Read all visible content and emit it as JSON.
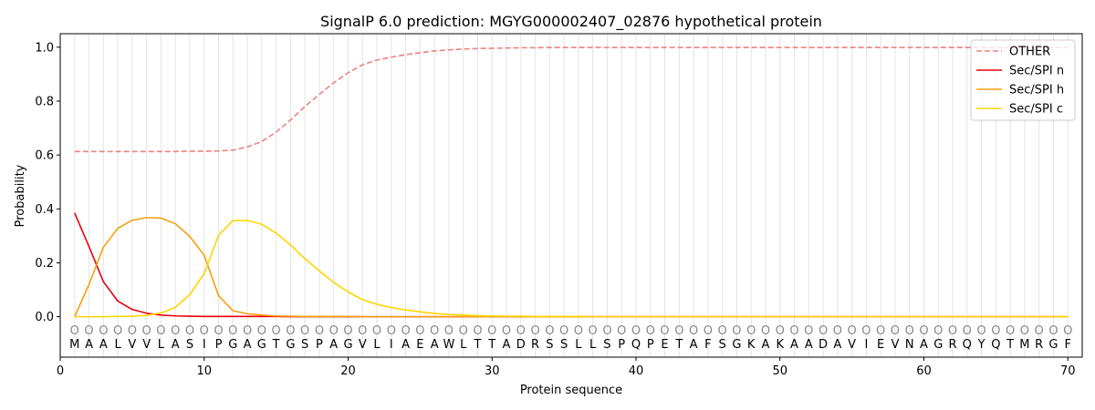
{
  "chart_data": {
    "type": "line",
    "title": "SignalP 6.0 prediction: MGYG000002407_02876 hypothetical protein",
    "xlabel": "Protein sequence",
    "ylabel": "Probability",
    "xlim": [
      0,
      71
    ],
    "ylim": [
      -0.15,
      1.05
    ],
    "x_ticks": [
      0,
      10,
      20,
      30,
      40,
      50,
      60,
      70
    ],
    "y_ticks": [
      0.0,
      0.2,
      0.4,
      0.6,
      0.8,
      1.0
    ],
    "x_tick_labels": [
      "0",
      "10",
      "20",
      "30",
      "40",
      "50",
      "60",
      "70"
    ],
    "y_tick_labels": [
      "0.0",
      "0.2",
      "0.4",
      "0.6",
      "0.8",
      "1.0"
    ],
    "grid": "vertical lines at each residue",
    "legend_position": "top-right",
    "sequence": [
      "M",
      "A",
      "A",
      "L",
      "V",
      "V",
      "L",
      "A",
      "S",
      "I",
      "P",
      "G",
      "A",
      "G",
      "T",
      "G",
      "S",
      "P",
      "A",
      "G",
      "V",
      "L",
      "I",
      "A",
      "E",
      "A",
      "W",
      "L",
      "T",
      "T",
      "A",
      "D",
      "R",
      "S",
      "S",
      "L",
      "L",
      "S",
      "P",
      "Q",
      "P",
      "E",
      "T",
      "A",
      "F",
      "S",
      "G",
      "K",
      "A",
      "K",
      "A",
      "A",
      "D",
      "A",
      "V",
      "I",
      "E",
      "V",
      "N",
      "A",
      "G",
      "R",
      "Q",
      "Y",
      "Q",
      "T",
      "M",
      "R",
      "G",
      "F"
    ],
    "region_labels": [
      "O",
      "O",
      "O",
      "O",
      "O",
      "O",
      "O",
      "O",
      "O",
      "O",
      "O",
      "O",
      "O",
      "O",
      "O",
      "O",
      "O",
      "O",
      "O",
      "O",
      "O",
      "O",
      "O",
      "O",
      "O",
      "O",
      "O",
      "O",
      "O",
      "O",
      "O",
      "O",
      "O",
      "O",
      "O",
      "O",
      "O",
      "O",
      "O",
      "O",
      "O",
      "O",
      "O",
      "O",
      "O",
      "O",
      "O",
      "O",
      "O",
      "O",
      "O",
      "O",
      "O",
      "O",
      "O",
      "O",
      "O",
      "O",
      "O",
      "O",
      "O",
      "O",
      "O",
      "O",
      "O",
      "O",
      "O",
      "O",
      "O",
      "O"
    ],
    "series": [
      {
        "name": "OTHER",
        "color": "#f08080",
        "dash": true,
        "values": [
          0.613,
          0.613,
          0.613,
          0.613,
          0.613,
          0.613,
          0.613,
          0.613,
          0.614,
          0.614,
          0.615,
          0.618,
          0.63,
          0.65,
          0.685,
          0.73,
          0.78,
          0.825,
          0.868,
          0.905,
          0.935,
          0.952,
          0.963,
          0.972,
          0.98,
          0.986,
          0.99,
          0.993,
          0.995,
          0.996,
          0.997,
          0.998,
          0.998,
          0.999,
          0.999,
          0.999,
          0.999,
          0.999,
          0.999,
          0.999,
          0.999,
          0.999,
          0.999,
          0.999,
          0.999,
          0.999,
          0.999,
          0.999,
          0.999,
          0.999,
          0.999,
          0.999,
          0.999,
          0.999,
          0.999,
          0.999,
          0.999,
          0.999,
          0.999,
          0.999,
          0.999,
          0.999,
          0.999,
          0.999,
          0.999,
          0.999,
          0.999,
          0.999,
          0.999,
          0.999
        ]
      },
      {
        "name": "Sec/SPI n",
        "color": "#e8000b",
        "dash": false,
        "values": [
          0.385,
          0.26,
          0.13,
          0.058,
          0.027,
          0.013,
          0.006,
          0.003,
          0.002,
          0.001,
          0.001,
          0.001,
          0.001,
          0.001,
          0.001,
          0.0,
          0.0,
          0.0,
          0.0,
          0.0,
          0.0,
          0.0,
          0.0,
          0.0,
          0.0,
          0.0,
          0.0,
          0.0,
          0.0,
          0.0,
          0.0,
          0.0,
          0.0,
          0.0,
          0.0,
          0.0,
          0.0,
          0.0,
          0.0,
          0.0,
          0.0,
          0.0,
          0.0,
          0.0,
          0.0,
          0.0,
          0.0,
          0.0,
          0.0,
          0.0,
          0.0,
          0.0,
          0.0,
          0.0,
          0.0,
          0.0,
          0.0,
          0.0,
          0.0,
          0.0,
          0.0,
          0.0,
          0.0,
          0.0,
          0.0,
          0.0,
          0.0,
          0.0,
          0.0,
          0.0
        ]
      },
      {
        "name": "Sec/SPI h",
        "color": "#f5a00f",
        "dash": false,
        "values": [
          0.0,
          0.12,
          0.258,
          0.328,
          0.358,
          0.368,
          0.366,
          0.345,
          0.298,
          0.228,
          0.078,
          0.022,
          0.011,
          0.006,
          0.003,
          0.002,
          0.001,
          0.001,
          0.001,
          0.001,
          0.0,
          0.0,
          0.0,
          0.0,
          0.0,
          0.0,
          0.0,
          0.0,
          0.0,
          0.0,
          0.0,
          0.0,
          0.0,
          0.0,
          0.0,
          0.0,
          0.0,
          0.0,
          0.0,
          0.0,
          0.0,
          0.0,
          0.0,
          0.0,
          0.0,
          0.0,
          0.0,
          0.0,
          0.0,
          0.0,
          0.0,
          0.0,
          0.0,
          0.0,
          0.0,
          0.0,
          0.0,
          0.0,
          0.0,
          0.0,
          0.0,
          0.0,
          0.0,
          0.0,
          0.0,
          0.0,
          0.0,
          0.0,
          0.0,
          0.0
        ]
      },
      {
        "name": "Sec/SPI c",
        "color": "#ffd500",
        "dash": false,
        "values": [
          0.0,
          0.0,
          0.0,
          0.001,
          0.002,
          0.005,
          0.014,
          0.035,
          0.082,
          0.16,
          0.302,
          0.357,
          0.357,
          0.343,
          0.31,
          0.266,
          0.215,
          0.17,
          0.127,
          0.092,
          0.063,
          0.046,
          0.034,
          0.025,
          0.018,
          0.012,
          0.008,
          0.006,
          0.004,
          0.003,
          0.002,
          0.002,
          0.001,
          0.001,
          0.001,
          0.001,
          0.0,
          0.0,
          0.0,
          0.0,
          0.0,
          0.0,
          0.0,
          0.0,
          0.0,
          0.0,
          0.0,
          0.0,
          0.0,
          0.0,
          0.0,
          0.0,
          0.0,
          0.0,
          0.0,
          0.0,
          0.0,
          0.0,
          0.0,
          0.0,
          0.0,
          0.0,
          0.0,
          0.0,
          0.0,
          0.0,
          0.0,
          0.0,
          0.0,
          0.0
        ]
      }
    ]
  }
}
